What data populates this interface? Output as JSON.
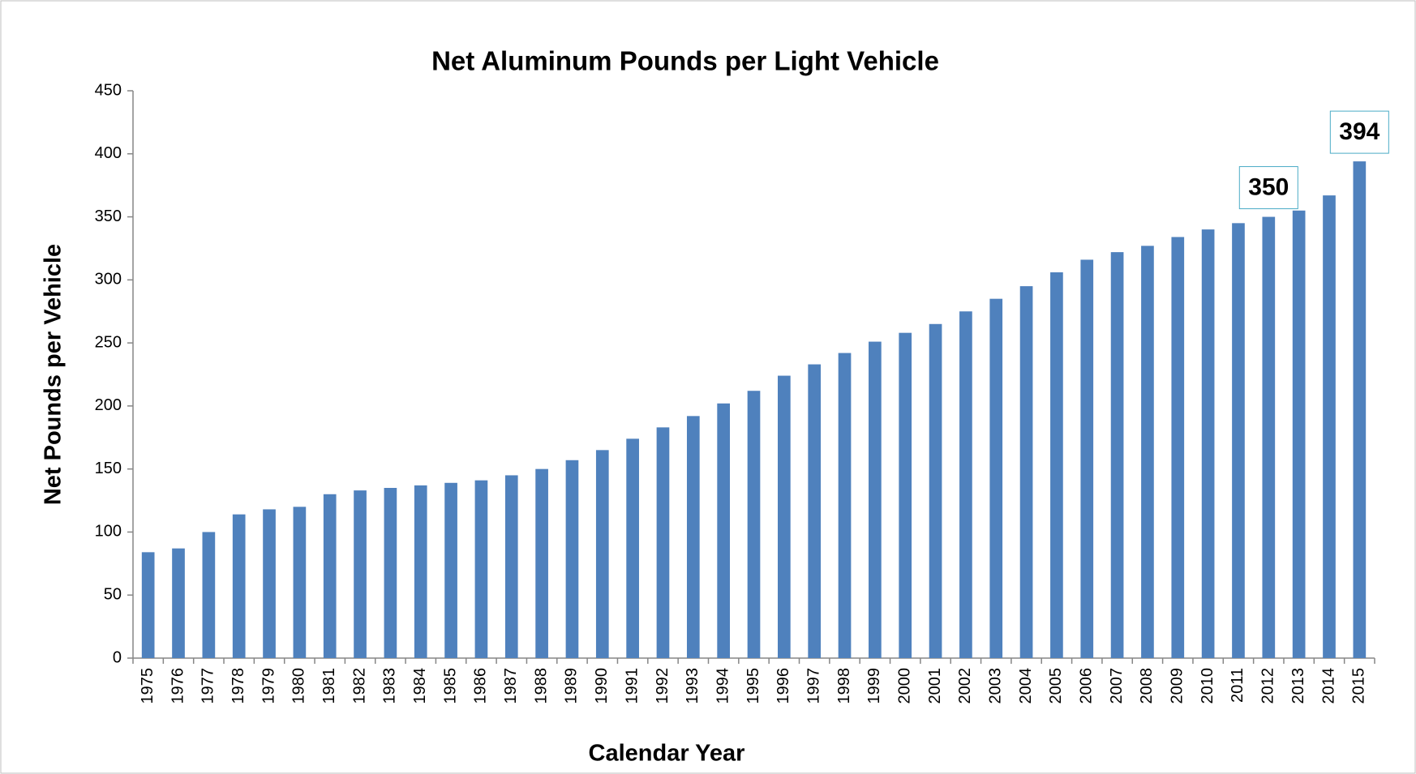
{
  "chart_data": {
    "type": "bar",
    "title": "Net Aluminum Pounds per Light Vehicle",
    "x_label": "Calendar Year",
    "y_label": "Net Pounds per Vehicle",
    "categories": [
      "1975",
      "1976",
      "1977",
      "1978",
      "1979",
      "1980",
      "1981",
      "1982",
      "1983",
      "1984",
      "1985",
      "1986",
      "1987",
      "1988",
      "1989",
      "1990",
      "1991",
      "1992",
      "1993",
      "1994",
      "1995",
      "1996",
      "1997",
      "1998",
      "1999",
      "2000",
      "2001",
      "2002",
      "2003",
      "2004",
      "2005",
      "2006",
      "2007",
      "2008",
      "2009",
      "2010",
      "2011",
      "2012",
      "2013",
      "2014",
      "2015"
    ],
    "values": [
      84,
      87,
      100,
      114,
      118,
      120,
      130,
      133,
      135,
      137,
      139,
      141,
      145,
      150,
      157,
      165,
      174,
      183,
      192,
      202,
      212,
      224,
      233,
      242,
      251,
      258,
      265,
      275,
      285,
      295,
      306,
      316,
      322,
      327,
      334,
      340,
      345,
      350,
      355,
      367,
      394
    ],
    "value_labels": [
      null,
      null,
      null,
      null,
      null,
      null,
      null,
      null,
      null,
      null,
      null,
      null,
      null,
      null,
      null,
      null,
      null,
      null,
      null,
      null,
      null,
      null,
      null,
      null,
      null,
      null,
      null,
      null,
      null,
      null,
      null,
      null,
      null,
      null,
      null,
      null,
      null,
      "350",
      null,
      null,
      "394"
    ],
    "color": "#4f81bd",
    "ylim": [
      0,
      450
    ],
    "yticks": [
      0,
      50,
      100,
      150,
      200,
      250,
      300,
      350,
      400,
      450
    ],
    "grid": false
  }
}
